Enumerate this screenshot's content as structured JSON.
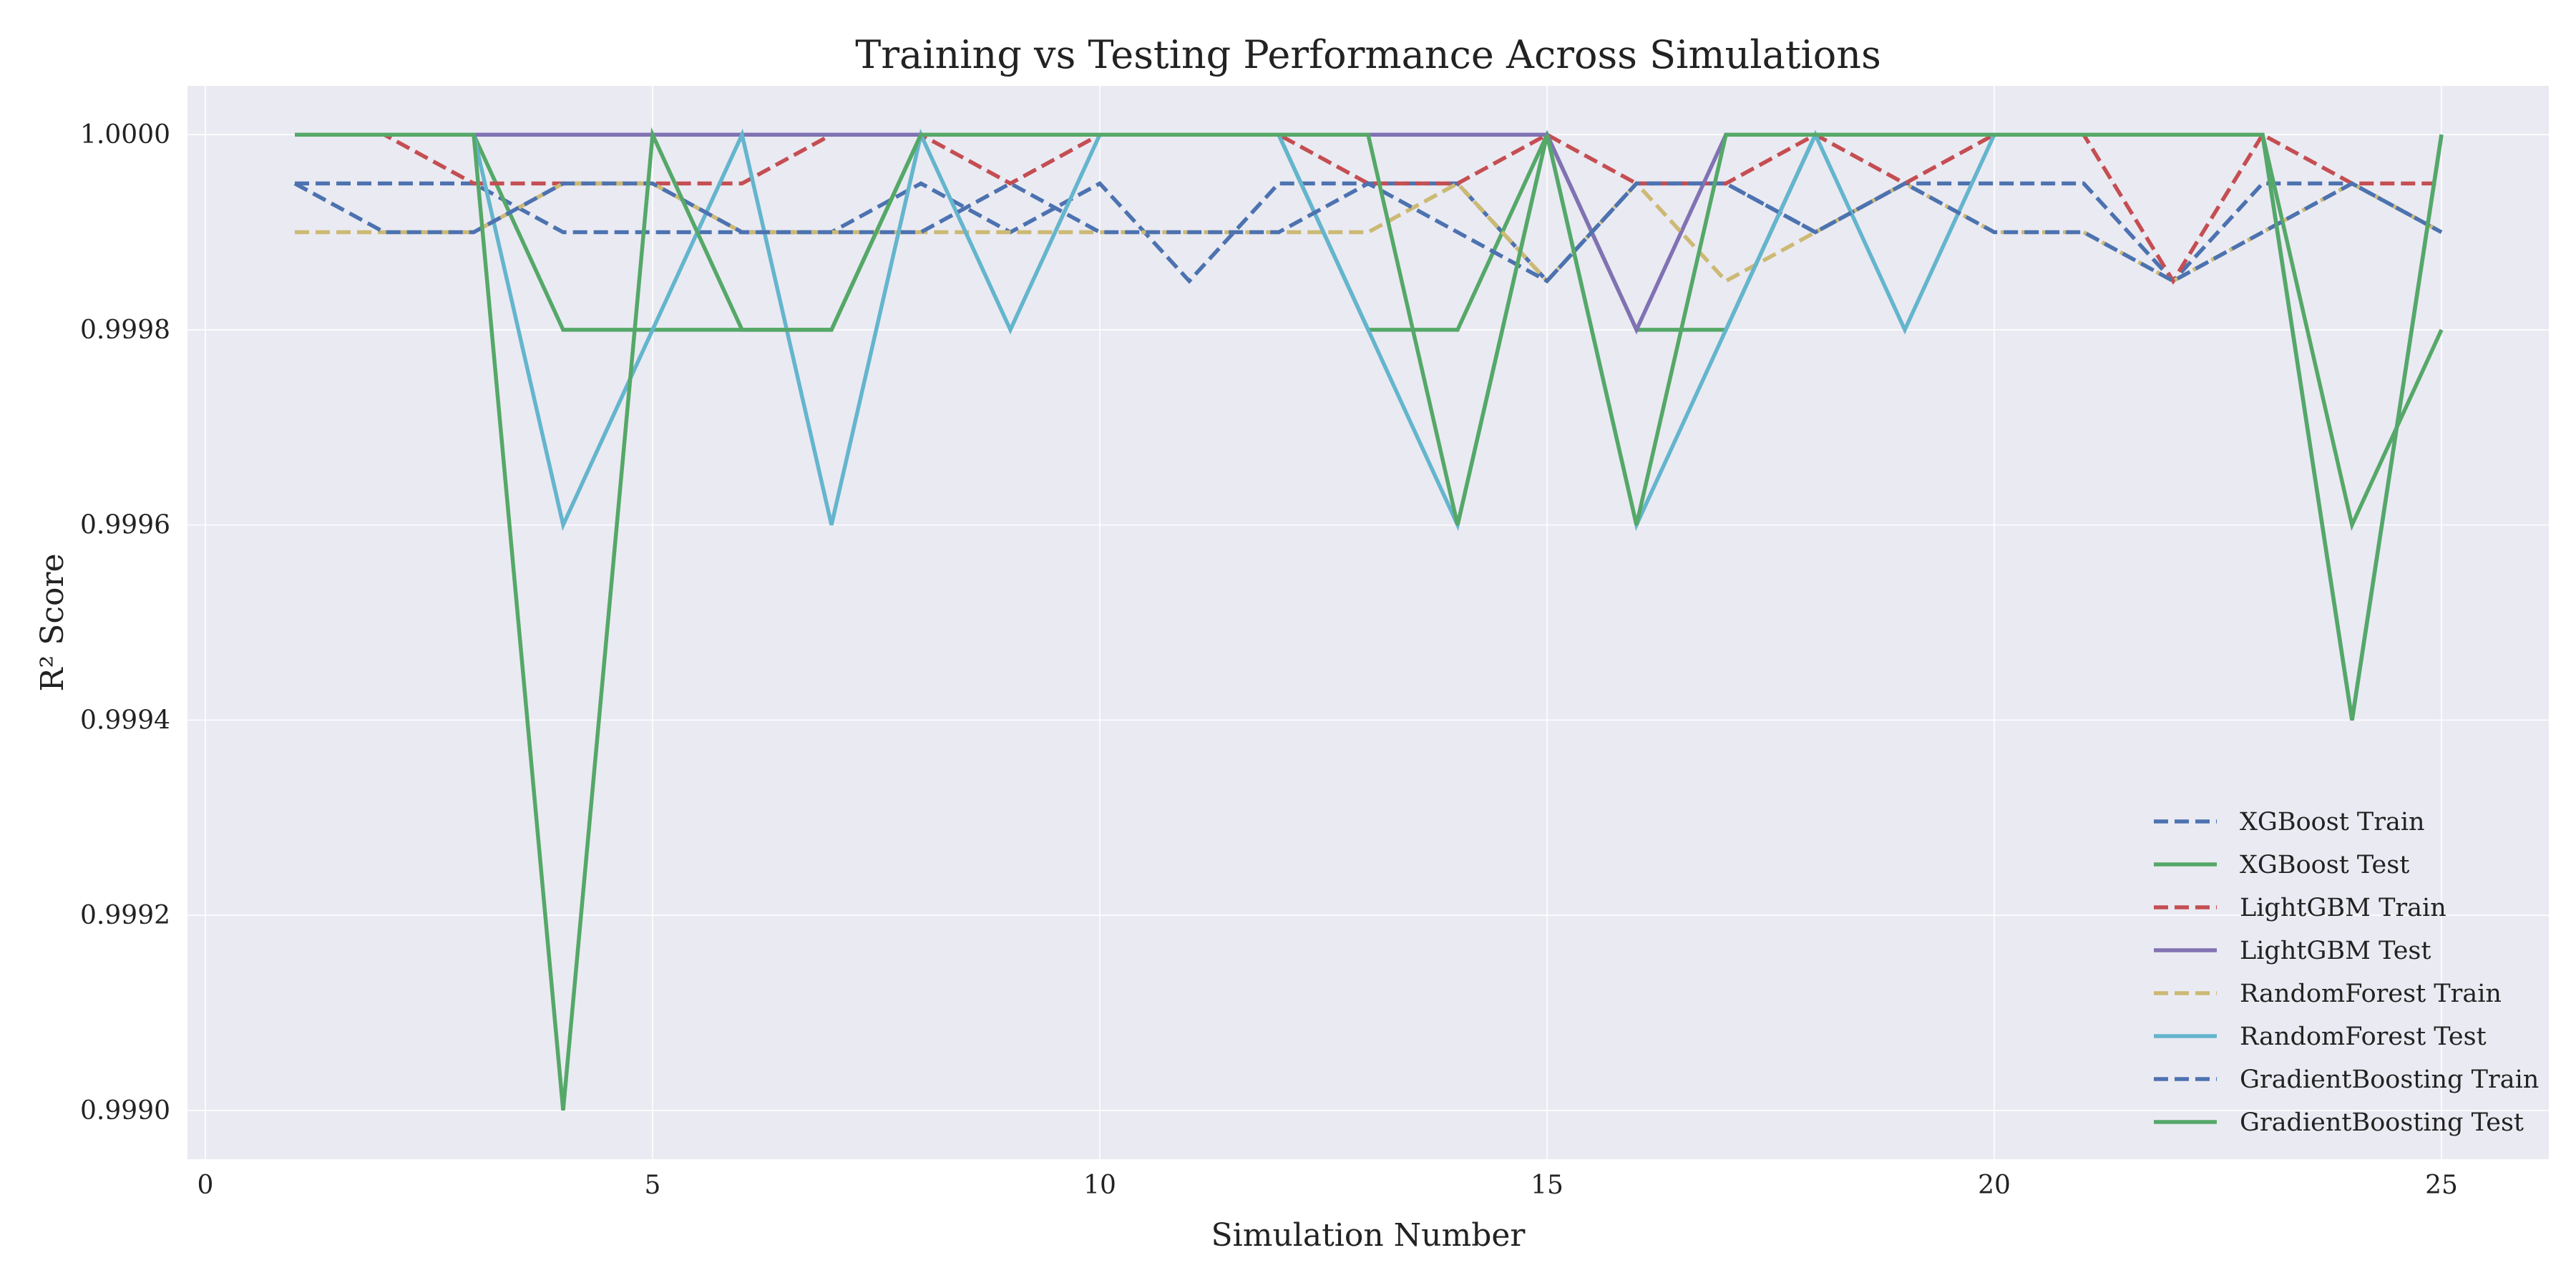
{
  "chart_data": {
    "type": "line",
    "title": "Training vs Testing Performance Across Simulations",
    "xlabel": "Simulation Number",
    "ylabel": "R² Score",
    "xlim": [
      -0.2,
      26.2
    ],
    "ylim": [
      0.99895,
      1.00005
    ],
    "xticks": [
      0,
      5,
      10,
      15,
      20,
      25
    ],
    "yticks": [
      0.999,
      0.9992,
      0.9994,
      0.9996,
      0.9998,
      1.0
    ],
    "ytick_labels": [
      "0.9990",
      "0.9992",
      "0.9994",
      "0.9996",
      "0.9998",
      "1.0000"
    ],
    "grid": true,
    "legend_position": "lower-right",
    "background_color": "#eaeaf2",
    "x": [
      1,
      2,
      3,
      4,
      5,
      6,
      7,
      8,
      9,
      10,
      11,
      12,
      13,
      14,
      15,
      16,
      17,
      18,
      19,
      20,
      21,
      22,
      23,
      24,
      25
    ],
    "series": [
      {
        "name": "XGBoost Train",
        "color": "#4c72b0",
        "dash": "dashed",
        "values": [
          0.99995,
          0.99995,
          0.99995,
          0.9999,
          0.9999,
          0.9999,
          0.9999,
          0.99995,
          0.9999,
          0.99995,
          0.99985,
          0.99995,
          0.99995,
          0.99995,
          0.99985,
          0.99995,
          0.99995,
          0.9999,
          0.99995,
          0.99995,
          0.99995,
          0.99985,
          0.99995,
          0.99995,
          0.9999
        ]
      },
      {
        "name": "XGBoost Test",
        "color": "#55a868",
        "dash": "solid",
        "values": [
          1.0,
          1.0,
          1.0,
          0.9998,
          0.9998,
          0.9998,
          0.9998,
          1.0,
          1.0,
          1.0,
          1.0,
          1.0,
          0.9998,
          0.9998,
          1.0,
          0.9998,
          0.9998,
          1.0,
          1.0,
          1.0,
          1.0,
          1.0,
          1.0,
          0.9996,
          0.9998
        ]
      },
      {
        "name": "LightGBM Train",
        "color": "#c44e52",
        "dash": "dashed",
        "values": [
          1.0,
          1.0,
          0.99995,
          0.99995,
          0.99995,
          0.99995,
          1.0,
          1.0,
          0.99995,
          1.0,
          1.0,
          1.0,
          0.99995,
          0.99995,
          1.0,
          0.99995,
          0.99995,
          1.0,
          0.99995,
          1.0,
          1.0,
          0.99985,
          1.0,
          0.99995,
          0.99995
        ]
      },
      {
        "name": "LightGBM Test",
        "color": "#8172b3",
        "dash": "solid",
        "values": [
          1.0,
          1.0,
          1.0,
          1.0,
          1.0,
          1.0,
          1.0,
          1.0,
          1.0,
          1.0,
          1.0,
          1.0,
          1.0,
          1.0,
          1.0,
          0.9998,
          1.0,
          1.0,
          1.0,
          1.0,
          1.0,
          1.0,
          1.0,
          0.9994,
          1.0
        ]
      },
      {
        "name": "RandomForest Train",
        "color": "#ccb974",
        "dash": "dashed",
        "values": [
          0.9999,
          0.9999,
          0.9999,
          0.99995,
          0.99995,
          0.9999,
          0.9999,
          0.9999,
          0.9999,
          0.9999,
          0.9999,
          0.9999,
          0.9999,
          0.99995,
          0.99985,
          0.99995,
          0.99985,
          0.9999,
          0.99995,
          0.9999,
          0.9999,
          0.99985,
          0.9999,
          0.99995,
          0.9999
        ]
      },
      {
        "name": "RandomForest Test",
        "color": "#64b5cd",
        "dash": "solid",
        "values": [
          1.0,
          1.0,
          1.0,
          0.9996,
          0.9998,
          1.0,
          0.9996,
          1.0,
          0.9998,
          1.0,
          1.0,
          1.0,
          0.9998,
          0.9996,
          1.0,
          0.9996,
          0.9998,
          1.0,
          0.9998,
          1.0,
          1.0,
          1.0,
          1.0,
          0.9994,
          1.0
        ]
      },
      {
        "name": "GradientBoosting Train",
        "color": "#4c72b0",
        "dash": "dashed",
        "values": [
          0.99995,
          0.9999,
          0.9999,
          0.99995,
          0.99995,
          0.9999,
          0.9999,
          0.9999,
          0.99995,
          0.9999,
          0.9999,
          0.9999,
          0.99995,
          0.9999,
          0.99985,
          0.99995,
          0.99995,
          0.9999,
          0.99995,
          0.9999,
          0.9999,
          0.99985,
          0.9999,
          0.99995,
          0.9999
        ]
      },
      {
        "name": "GradientBoosting Test",
        "color": "#55a868",
        "dash": "solid",
        "values": [
          1.0,
          1.0,
          1.0,
          0.999,
          1.0,
          0.9998,
          0.9998,
          1.0,
          1.0,
          1.0,
          1.0,
          1.0,
          1.0,
          0.9996,
          1.0,
          0.9996,
          1.0,
          1.0,
          1.0,
          1.0,
          1.0,
          1.0,
          1.0,
          0.9994,
          1.0
        ]
      }
    ]
  }
}
